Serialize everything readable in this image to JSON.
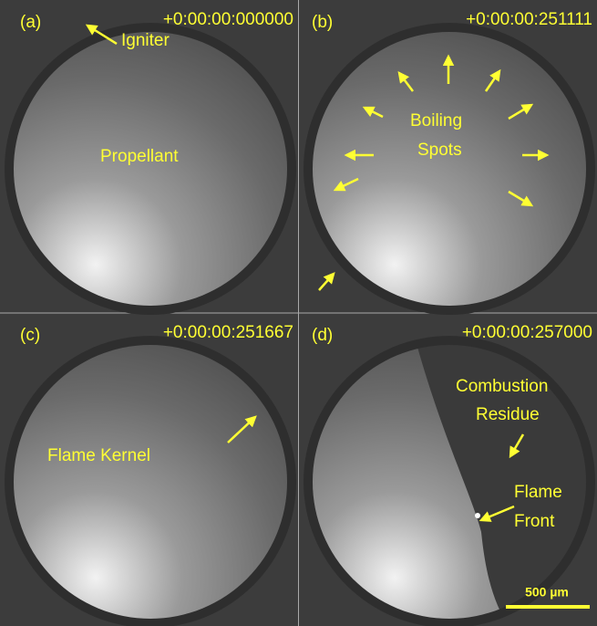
{
  "panels": [
    {
      "label": "(a)",
      "timestamp": "+0:00:00:000000",
      "annotations": [
        [
          "Igniter"
        ],
        [
          "Propellant"
        ]
      ]
    },
    {
      "label": "(b)",
      "timestamp": "+0:00:00:251111",
      "annotations": [
        [
          "Boiling",
          "Spots"
        ]
      ]
    },
    {
      "label": "(c)",
      "timestamp": "+0:00:00:251667",
      "annotations": [
        [
          "Flame Kernel"
        ]
      ]
    },
    {
      "label": "(d)",
      "timestamp": "+0:00:00:257000",
      "annotations": [
        [
          "Combustion",
          "Residue"
        ],
        [
          "Flame",
          "Front"
        ]
      ]
    }
  ],
  "scale_bar": "500 µm"
}
